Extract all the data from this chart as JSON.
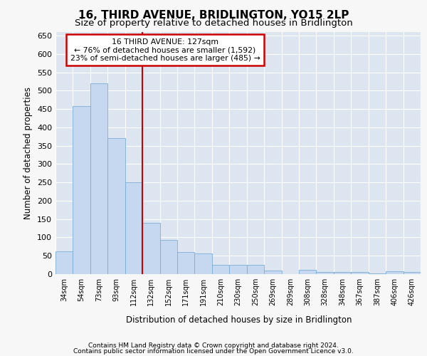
{
  "title": "16, THIRD AVENUE, BRIDLINGTON, YO15 2LP",
  "subtitle": "Size of property relative to detached houses in Bridlington",
  "xlabel": "Distribution of detached houses by size in Bridlington",
  "ylabel": "Number of detached properties",
  "footer1": "Contains HM Land Registry data © Crown copyright and database right 2024.",
  "footer2": "Contains public sector information licensed under the Open Government Licence v3.0.",
  "annotation_line1": "16 THIRD AVENUE: 127sqm",
  "annotation_line2": "← 76% of detached houses are smaller (1,592)",
  "annotation_line3": "23% of semi-detached houses are larger (485) →",
  "bar_color": "#c5d8ef",
  "bar_edge_color": "#7aadd4",
  "categories": [
    "34sqm",
    "54sqm",
    "73sqm",
    "93sqm",
    "112sqm",
    "132sqm",
    "152sqm",
    "171sqm",
    "191sqm",
    "210sqm",
    "230sqm",
    "250sqm",
    "269sqm",
    "289sqm",
    "308sqm",
    "328sqm",
    "348sqm",
    "367sqm",
    "387sqm",
    "406sqm",
    "426sqm"
  ],
  "values": [
    62,
    458,
    520,
    370,
    250,
    140,
    93,
    60,
    57,
    25,
    25,
    25,
    10,
    0,
    12,
    5,
    5,
    5,
    2,
    7,
    5
  ],
  "ylim": [
    0,
    660
  ],
  "yticks": [
    0,
    50,
    100,
    150,
    200,
    250,
    300,
    350,
    400,
    450,
    500,
    550,
    600,
    650
  ],
  "fig_bg_color": "#f7f7f7",
  "plot_bg_color": "#dde6f0",
  "grid_color": "#ffffff",
  "title_fontsize": 11,
  "subtitle_fontsize": 9.5,
  "annotation_box_bg": "#ffffff",
  "annotation_box_edge": "#cc0000",
  "red_line_color": "#cc0000",
  "red_line_x": 4.5
}
